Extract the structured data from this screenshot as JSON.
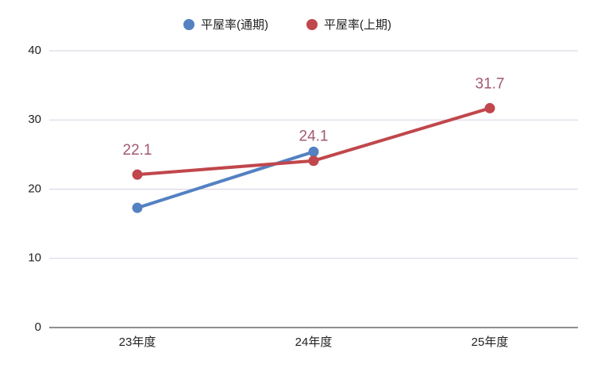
{
  "chart_data": {
    "type": "line",
    "categories": [
      "23年度",
      "24年度",
      "25年度"
    ],
    "series": [
      {
        "name": "平屋率(通期)",
        "color": "#5381c2",
        "values": [
          17.3,
          25.4,
          null
        ],
        "data_labels": false
      },
      {
        "name": "平屋率(上期)",
        "color": "#c0474c",
        "values": [
          22.1,
          24.1,
          31.7
        ],
        "data_labels": true,
        "label_color": "#a25a70"
      }
    ],
    "ylim": [
      0,
      40
    ],
    "yticks": [
      0,
      10,
      20,
      30,
      40
    ],
    "grid": true,
    "legend": "top"
  }
}
